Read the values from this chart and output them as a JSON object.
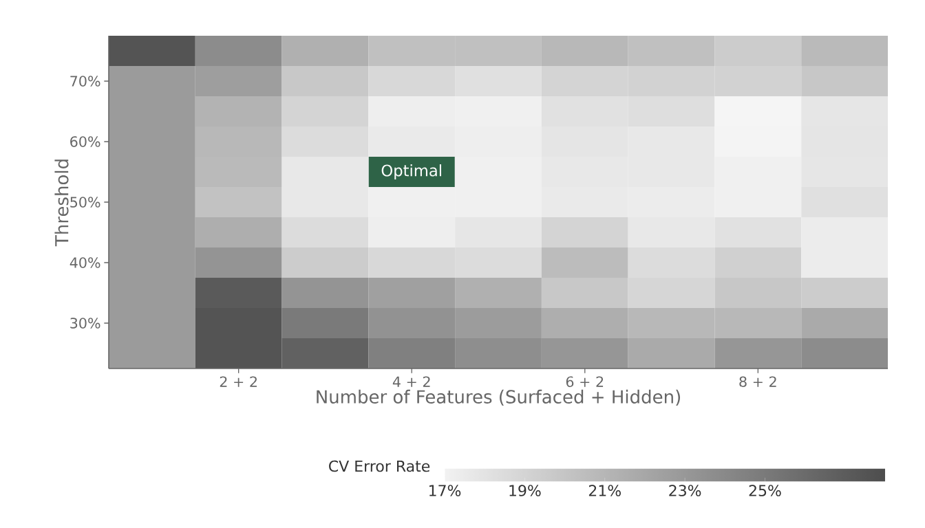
{
  "chart_data": {
    "type": "heatmap",
    "xlabel": "Number of Features (Surfaced + Hidden)",
    "ylabel": "Threshold",
    "clabel": "CV Error Rate",
    "categories": [
      null,
      "2 + 2",
      null,
      "4 + 2",
      null,
      "6 + 2",
      null,
      "8 + 2",
      null
    ],
    "y_categories": [
      null,
      "70%",
      null,
      "60%",
      null,
      "50%",
      null,
      "40%",
      null,
      "30%",
      null
    ],
    "cells": [
      [
        27.5,
        23.8,
        21.4,
        20.3,
        20.3,
        20.9,
        20.3,
        19.5,
        20.7
      ],
      [
        22.8,
        22.6,
        19.8,
        18.7,
        18.2,
        19.0,
        19.1,
        19.1,
        19.9
      ],
      [
        22.8,
        21.2,
        19.0,
        17.3,
        17.1,
        18.1,
        18.3,
        16.8,
        17.8
      ],
      [
        22.8,
        20.9,
        18.5,
        17.5,
        17.3,
        17.9,
        17.7,
        16.9,
        17.9
      ],
      [
        22.8,
        20.7,
        17.7,
        null,
        17.1,
        17.7,
        17.7,
        17.1,
        17.8
      ],
      [
        22.8,
        20.2,
        17.7,
        17.1,
        17.1,
        17.5,
        17.4,
        17.1,
        18.2
      ],
      [
        22.8,
        21.5,
        18.5,
        17.3,
        17.8,
        19.0,
        17.7,
        18.1,
        17.4
      ],
      [
        22.8,
        23.3,
        19.5,
        18.7,
        18.5,
        20.6,
        18.5,
        19.3,
        17.4
      ],
      [
        22.8,
        27.1,
        23.3,
        22.5,
        21.4,
        19.8,
        18.9,
        19.9,
        19.5
      ],
      [
        22.8,
        27.5,
        25.0,
        23.4,
        22.7,
        21.5,
        20.9,
        20.9,
        21.8
      ],
      [
        22.8,
        27.5,
        26.7,
        24.6,
        23.7,
        23.1,
        21.8,
        23.1,
        23.8
      ]
    ],
    "clim": [
      17,
      28
    ],
    "colors": [
      "#f2f2f2",
      "#4d4d4d"
    ],
    "cticks": [
      {
        "value": 17,
        "label": "17%"
      },
      {
        "value": 19,
        "label": "19%"
      },
      {
        "value": 21,
        "label": "21%"
      },
      {
        "value": 23,
        "label": "23%"
      },
      {
        "value": 25,
        "label": "25%"
      }
    ],
    "annotations": [
      "Optimal"
    ]
  }
}
